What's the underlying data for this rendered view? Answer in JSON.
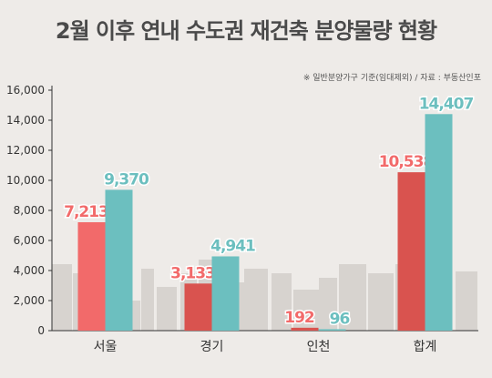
{
  "title": "2월 이후 연내 수도권 재건축 분양물량 현황",
  "source": "※ 일반분양가구 기준(임대제외) / 자료 : 부동산인포",
  "colors": {
    "background": "#eeebe8",
    "series_a": "#d9534f",
    "series_a_highlight": "#f26a6a",
    "series_b": "#6cbfbf",
    "buildings": "#d7d3cf",
    "axis": "#333333"
  },
  "chart_data": {
    "type": "bar",
    "categories": [
      "서울",
      "경기",
      "인천",
      "합계"
    ],
    "series": [
      {
        "values": [
          7213,
          3133,
          192,
          10538
        ],
        "labels": [
          "7,213",
          "3,133",
          "192",
          "10,538"
        ]
      },
      {
        "values": [
          9370,
          4941,
          96,
          14407
        ],
        "labels": [
          "9,370",
          "4,941",
          "96",
          "14,407"
        ]
      }
    ],
    "yticks": [
      "0",
      "2,000",
      "4,000",
      "6,000",
      "8,000",
      "10,000",
      "12,000",
      "14,000",
      "16,000"
    ],
    "ylim": [
      0,
      16000
    ],
    "grid": false,
    "legend": "none"
  }
}
